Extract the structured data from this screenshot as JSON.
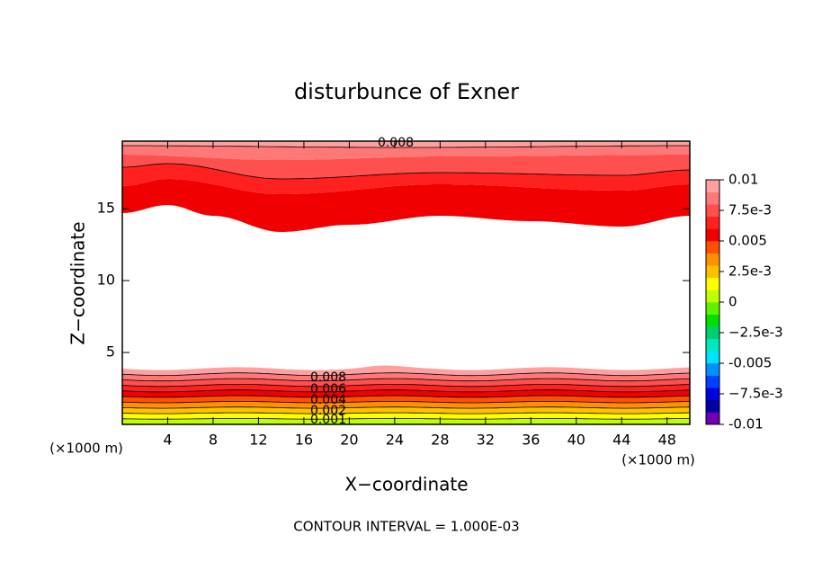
{
  "chart_data": {
    "type": "contour",
    "title": "disturbunce of Exner",
    "x_label": "X−coordinate",
    "y_label": "Z−coordinate",
    "x_unit": "(×1000 m)",
    "footer": "CONTOUR INTERVAL = 1.000E-03",
    "xlim": [
      0,
      50
    ],
    "xticks": [
      4,
      8,
      12,
      16,
      20,
      24,
      28,
      32,
      36,
      40,
      44,
      48
    ],
    "ylim": [
      0,
      19.7
    ],
    "yticks": [
      5,
      10,
      15
    ],
    "contour_labels": [
      0.008,
      0.008,
      0.006,
      0.004,
      0.002,
      0.001
    ],
    "colorbar": {
      "lim": [
        -0.01,
        0.01
      ],
      "ticks": [
        -0.01,
        {
          "value": -0.0075,
          "label": "−7.5e-3"
        },
        -0.005,
        {
          "value": -0.0025,
          "label": "−2.5e-3"
        },
        0,
        {
          "value": 0.0025,
          "label": "2.5e-3"
        },
        0.005,
        {
          "value": 0.0075,
          "label": "7.5e-3"
        },
        0.01
      ],
      "colors": [
        "#7000b0",
        "#0000a0",
        "#0000e0",
        "#0040ff",
        "#0090ff",
        "#00e0ff",
        "#00e8c0",
        "#00d070",
        "#00e000",
        "#60f000",
        "#c0ff00",
        "#ffff00",
        "#ffc000",
        "#ff9000",
        "#ff5000",
        "#f00000",
        "#ff2020",
        "#ff5050",
        "#ff7878",
        "#ffa0a0"
      ]
    }
  }
}
